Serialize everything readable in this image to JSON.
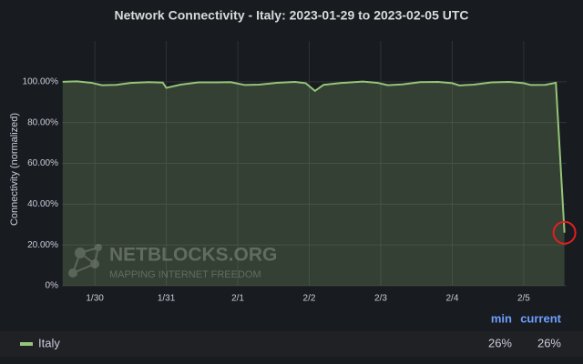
{
  "chart_data": {
    "type": "area",
    "title": "Network Connectivity - Italy: 2023-01-29 to 2023-02-05 UTC",
    "y_label": "Connectivity (normalized)",
    "watermark": [
      "NETBLOCKS.ORG",
      "MAPPING INTERNET FREEDOM"
    ],
    "xlim": [
      0.54,
      7.6
    ],
    "xticks": [
      {
        "value": 1,
        "label": "1/30"
      },
      {
        "value": 2,
        "label": "1/31"
      },
      {
        "value": 3,
        "label": "2/1"
      },
      {
        "value": 4,
        "label": "2/2"
      },
      {
        "value": 5,
        "label": "2/3"
      },
      {
        "value": 6,
        "label": "2/4"
      },
      {
        "value": 7,
        "label": "2/5"
      }
    ],
    "ylim": [
      0,
      120
    ],
    "yticks": [
      {
        "value": 0,
        "label": "0%"
      },
      {
        "value": 20,
        "label": "20.00%"
      },
      {
        "value": 40,
        "label": "40.00%"
      },
      {
        "value": 60,
        "label": "60.00%"
      },
      {
        "value": 80,
        "label": "80.00%"
      },
      {
        "value": 100,
        "label": "100.00%"
      }
    ],
    "grid": true,
    "series": [
      {
        "name": "Italy",
        "color": "#96c47a",
        "x": [
          0.55,
          0.75,
          0.95,
          1.1,
          1.3,
          1.5,
          1.75,
          1.95,
          2.0,
          2.2,
          2.45,
          2.7,
          2.9,
          3.1,
          3.3,
          3.55,
          3.8,
          3.95,
          4.08,
          4.2,
          4.45,
          4.75,
          4.95,
          5.1,
          5.3,
          5.55,
          5.8,
          6.0,
          6.1,
          6.3,
          6.55,
          6.8,
          7.0,
          7.1,
          7.3,
          7.45,
          7.57
        ],
        "values": [
          100,
          100.2,
          99.5,
          98.3,
          98.5,
          99.4,
          99.8,
          99.6,
          97.0,
          98.6,
          99.7,
          99.7,
          99.8,
          98.4,
          98.6,
          99.5,
          99.9,
          99.3,
          95.5,
          98.5,
          99.4,
          100.1,
          99.5,
          98.3,
          98.7,
          99.8,
          99.9,
          99.3,
          98.2,
          98.6,
          99.7,
          99.9,
          99.3,
          98.4,
          98.5,
          99.5,
          26
        ]
      }
    ],
    "legend_columns": [
      "min",
      "current"
    ],
    "legend_values": [
      "26%",
      "26%"
    ]
  }
}
